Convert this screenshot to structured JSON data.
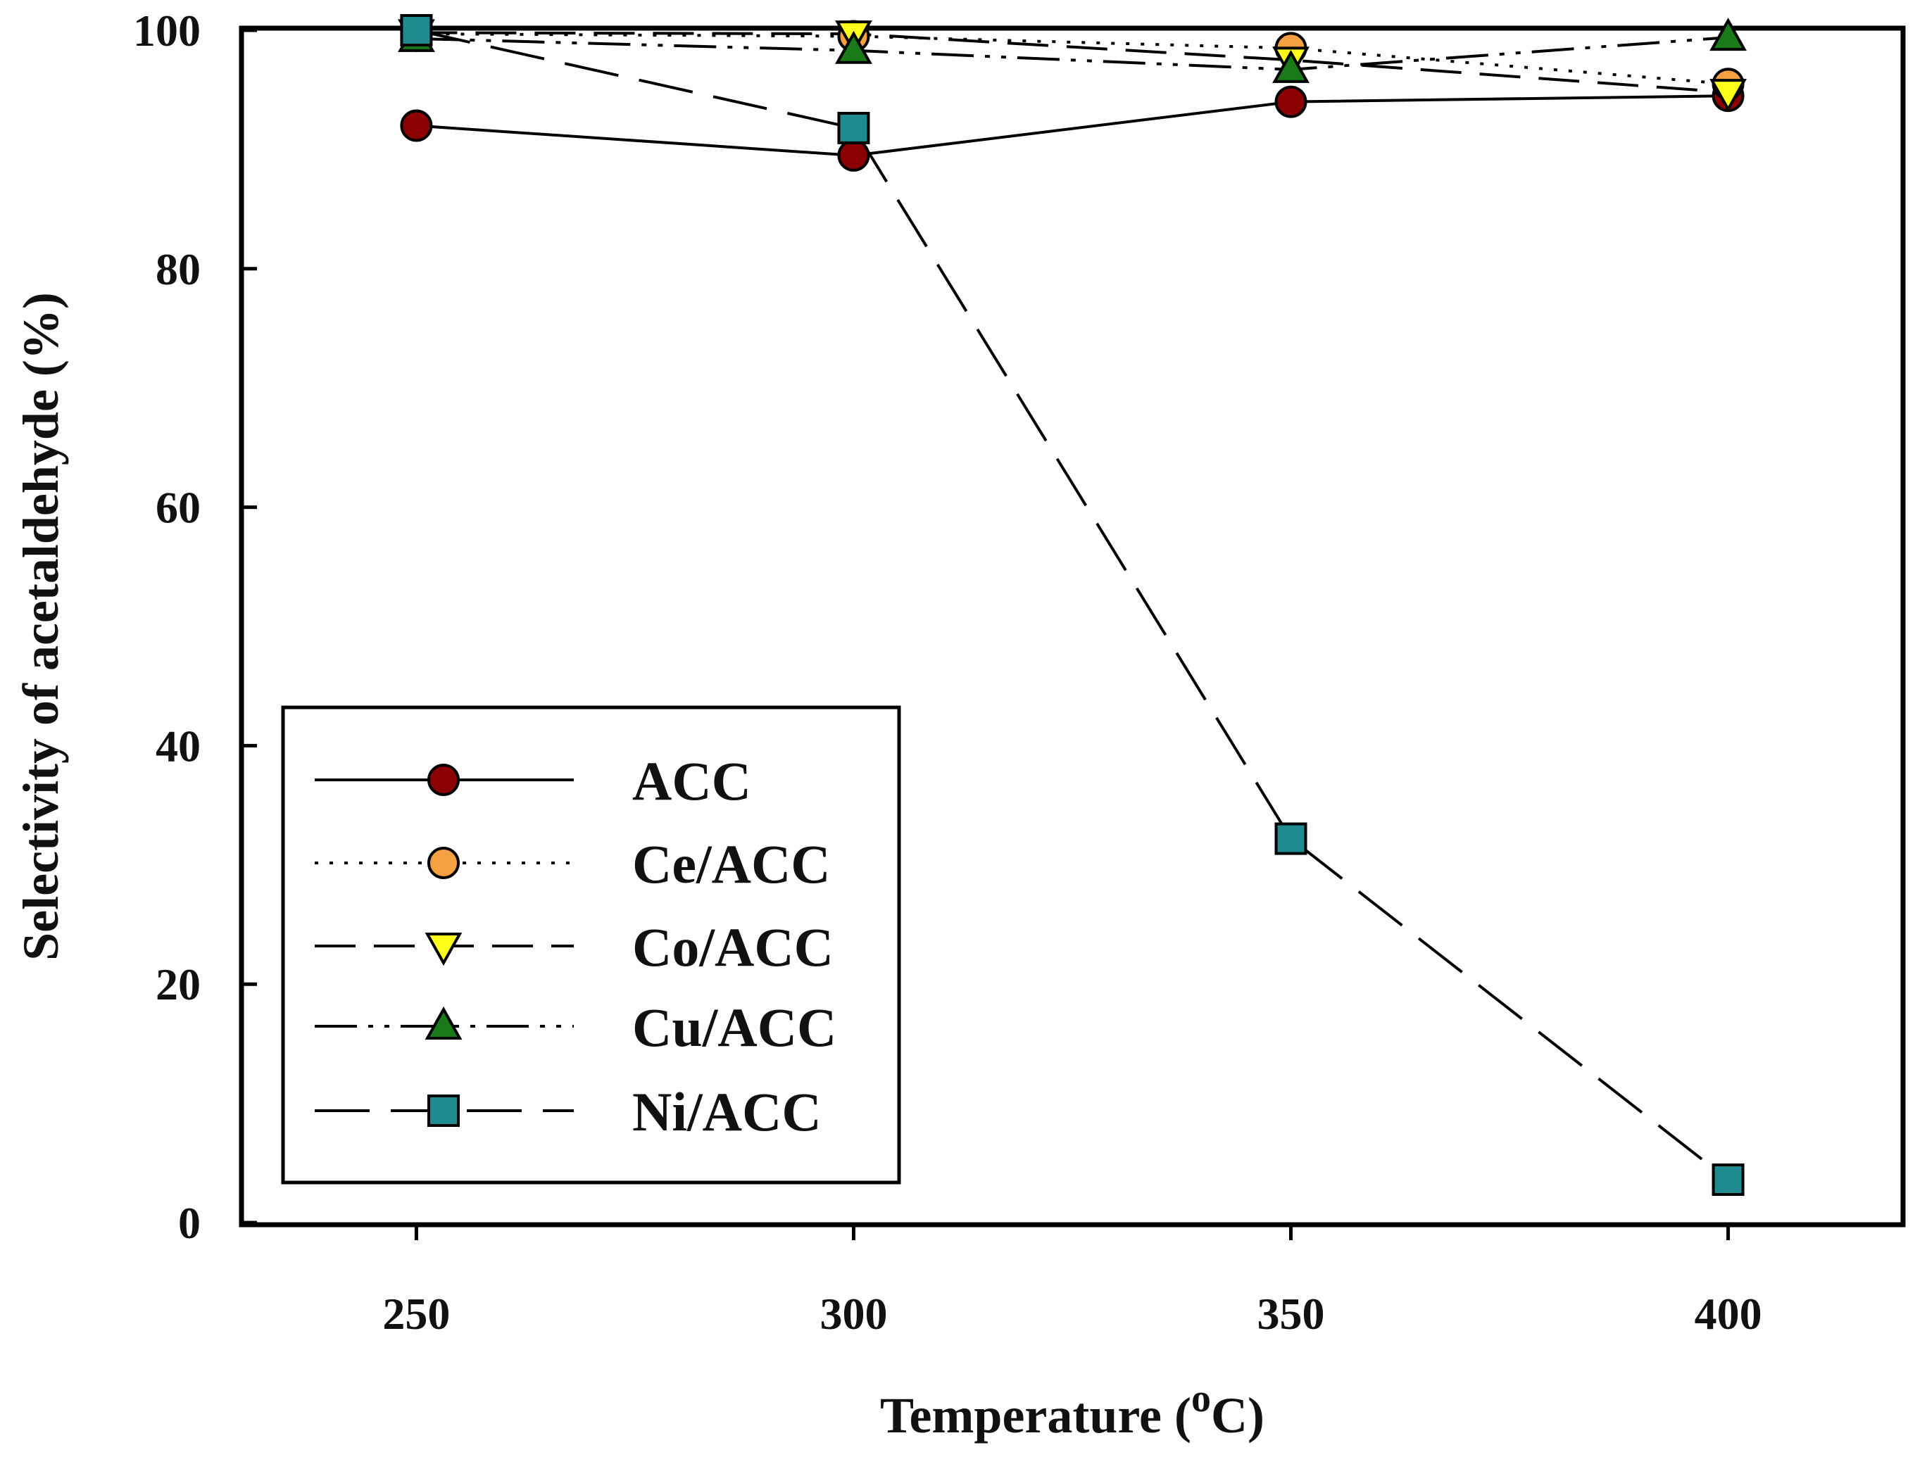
{
  "chart_data": {
    "type": "line",
    "title": "",
    "xlabel": "Temperature (",
    "xlabel_sup": "o",
    "xlabel_end": "C)",
    "ylabel": "Selectivity of acetaldehyde (%)",
    "x": [
      250,
      300,
      350,
      400
    ],
    "xlim": [
      230,
      420
    ],
    "ylim": [
      0,
      100
    ],
    "xticks": [
      250,
      300,
      350,
      400
    ],
    "yticks": [
      0,
      20,
      40,
      60,
      80,
      100
    ],
    "legend_position": "lower-left",
    "grid": false,
    "series": [
      {
        "name": "ACC",
        "values": [
          92,
          89.5,
          94,
          94.5
        ],
        "marker": "circle",
        "line": "solid",
        "color": "#8b0000"
      },
      {
        "name": "Ce/ACC",
        "values": [
          99.7,
          99.5,
          98.5,
          95.5
        ],
        "marker": "circle",
        "line": "dotted",
        "color": "#f5a142"
      },
      {
        "name": "Co/ACC",
        "values": [
          99.8,
          99.7,
          97.5,
          94.8
        ],
        "marker": "triangle-down",
        "line": "dashed",
        "color": "#ffff1a"
      },
      {
        "name": "Cu/ACC",
        "values": [
          99.3,
          98.3,
          96.7,
          99.4
        ],
        "marker": "triangle-up",
        "line": "dash-dot-dot",
        "color": "#1a7a1a"
      },
      {
        "name": "Ni/ACC",
        "values": [
          100,
          91.8,
          32.2,
          3.6
        ],
        "marker": "square",
        "line": "long-dash",
        "color": "#1f8a8f"
      }
    ]
  }
}
